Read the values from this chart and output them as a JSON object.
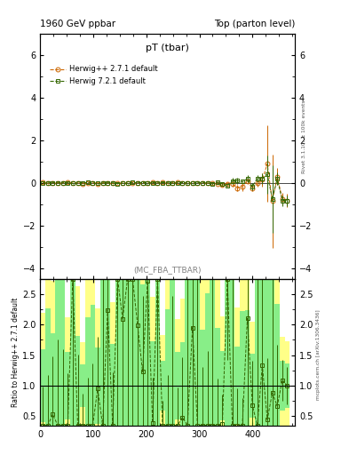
{
  "title_left": "1960 GeV ppbar",
  "title_right": "Top (parton level)",
  "plot_title": "pT (tbar)",
  "watermark": "(MC_FBA_TTBAR)",
  "rivet_label": "Rivet 3.1.10, ≥ 100k events",
  "arxiv_label": "mcplots.cern.ch [arXiv:1306.3436]",
  "ylabel_ratio": "Ratio to Herwig++ 2.7.1 default",
  "ylim_main": [
    -4.5,
    7.0
  ],
  "ylim_ratio": [
    0.35,
    2.75
  ],
  "xlim": [
    0,
    480
  ],
  "yticks_main": [
    -4,
    -2,
    0,
    2,
    4,
    6
  ],
  "yticks_ratio": [
    0.5,
    1.0,
    1.5,
    2.0,
    2.5
  ],
  "legend_entries": [
    "Herwig++ 2.7.1 default",
    "Herwig 7.2.1 default"
  ],
  "color_hw": "#cc6600",
  "color_hw7": "#336600",
  "color_band_yellow": "#ffff88",
  "color_band_green": "#88ee88",
  "color_bg": "#ffffff",
  "n_bins": 50,
  "x_start": 5.0,
  "x_spacing": 9.4
}
